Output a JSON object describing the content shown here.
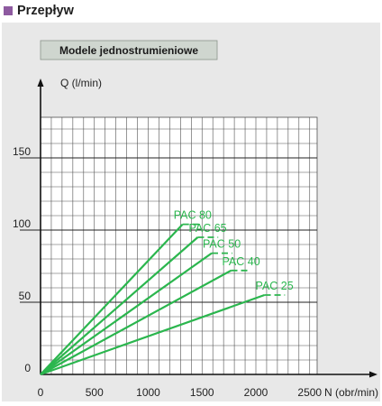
{
  "header": {
    "title": "Przepływ"
  },
  "colors": {
    "accent": "#8e5aa0",
    "line": "#2bb64e",
    "panel": "#e8e8e8",
    "badge": "#cfd6cf"
  },
  "chart_data": {
    "type": "line",
    "title": "Modele jednostrumieniowe",
    "xlabel": "N (obr/min)",
    "ylabel": "Q (l/min)",
    "xlim": [
      0,
      3100
    ],
    "ylim": [
      0,
      192
    ],
    "x_ticks": [
      0,
      500,
      1000,
      1500,
      2000,
      2500
    ],
    "y_ticks": [
      0,
      50,
      100,
      150
    ],
    "grid": true,
    "series": [
      {
        "name": "PAC 80",
        "x": [
          0,
          1320,
          1500
        ],
        "y": [
          0,
          104,
          104
        ]
      },
      {
        "name": "PAC 65",
        "x": [
          0,
          1460,
          1650
        ],
        "y": [
          0,
          95,
          95
        ]
      },
      {
        "name": "PAC 50",
        "x": [
          0,
          1590,
          1780
        ],
        "y": [
          0,
          84,
          84
        ]
      },
      {
        "name": "PAC 40",
        "x": [
          0,
          1770,
          1950
        ],
        "y": [
          0,
          72,
          72
        ]
      },
      {
        "name": "PAC 25",
        "x": [
          0,
          2080,
          2270
        ],
        "y": [
          0,
          55,
          55
        ]
      }
    ]
  }
}
